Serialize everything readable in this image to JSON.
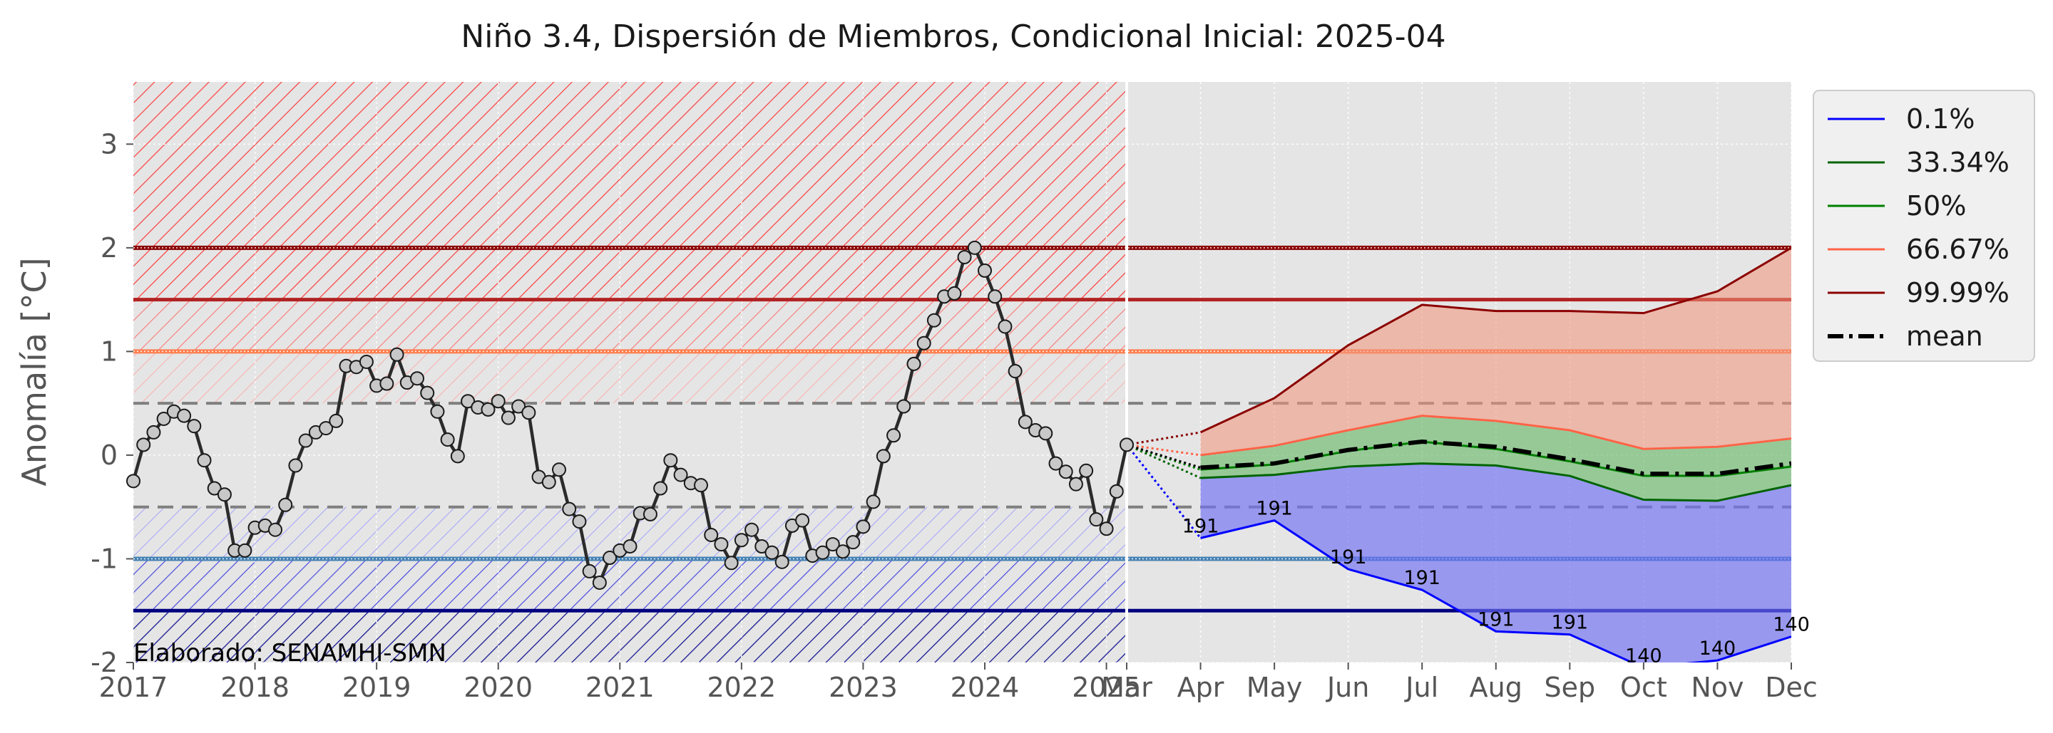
{
  "chart_data": {
    "type": "line",
    "title": "Niño 3.4, Dispersión de Miembros, Condicional Inicial: 2025-04",
    "ylabel": "Anomalía [°C]",
    "xlabel": "",
    "ylim": [
      -2,
      3.6
    ],
    "yticks": [
      -2,
      -1,
      0,
      1,
      2,
      3
    ],
    "grid": true,
    "legend_placement": "outside-right-top",
    "annotation": "Elaborado: SENAMHI-SMN",
    "observed": {
      "x_ticks": [
        "2017",
        "2018",
        "2019",
        "2020",
        "2021",
        "2022",
        "2023",
        "2024",
        "2025"
      ],
      "start": "2017-01",
      "end": "2025-03",
      "values": [
        -0.25,
        0.1,
        0.22,
        0.35,
        0.42,
        0.38,
        0.28,
        -0.05,
        -0.32,
        -0.38,
        -0.92,
        -0.92,
        -0.7,
        -0.68,
        -0.72,
        -0.48,
        -0.1,
        0.14,
        0.22,
        0.26,
        0.33,
        0.86,
        0.85,
        0.9,
        0.67,
        0.69,
        0.97,
        0.7,
        0.74,
        0.6,
        0.42,
        0.15,
        -0.01,
        0.52,
        0.46,
        0.44,
        0.52,
        0.36,
        0.47,
        0.41,
        -0.21,
        -0.26,
        -0.14,
        -0.52,
        -0.64,
        -1.12,
        -1.23,
        -0.99,
        -0.92,
        -0.88,
        -0.56,
        -0.57,
        -0.32,
        -0.05,
        -0.19,
        -0.27,
        -0.29,
        -0.77,
        -0.86,
        -1.04,
        -0.82,
        -0.72,
        -0.88,
        -0.94,
        -1.03,
        -0.68,
        -0.63,
        -0.97,
        -0.94,
        -0.86,
        -0.93,
        -0.84,
        -0.69,
        -0.45,
        -0.01,
        0.19,
        0.47,
        0.88,
        1.08,
        1.3,
        1.53,
        1.56,
        1.91,
        2.0,
        1.78,
        1.53,
        1.24,
        0.81,
        0.32,
        0.24,
        0.21,
        -0.08,
        -0.16,
        -0.28,
        -0.15,
        -0.62,
        -0.71,
        -0.35,
        0.1
      ]
    },
    "forecast": {
      "categories": [
        "Mar",
        "Apr",
        "May",
        "Jun",
        "Jul",
        "Aug",
        "Sep",
        "Oct",
        "Nov",
        "Dec"
      ],
      "series": [
        {
          "name": "0.1%",
          "color": "#0000ff",
          "values": [
            0.1,
            -0.8,
            -0.63,
            -1.1,
            -1.3,
            -1.7,
            -1.73,
            -2.05,
            -1.98,
            -1.75
          ]
        },
        {
          "name": "33.34%",
          "color": "#006400",
          "values": [
            0.1,
            -0.22,
            -0.19,
            -0.11,
            -0.08,
            -0.1,
            -0.2,
            -0.43,
            -0.44,
            -0.29
          ]
        },
        {
          "name": "50%",
          "color": "#008000",
          "values": [
            0.1,
            -0.14,
            -0.09,
            0.04,
            0.13,
            0.06,
            -0.06,
            -0.2,
            -0.2,
            -0.11
          ]
        },
        {
          "name": "66.67%",
          "color": "#ff6347",
          "values": [
            0.1,
            0.0,
            0.09,
            0.24,
            0.38,
            0.33,
            0.24,
            0.06,
            0.08,
            0.16
          ]
        },
        {
          "name": "99.99%",
          "color": "#8b0000",
          "values": [
            0.1,
            0.22,
            0.55,
            1.06,
            1.45,
            1.39,
            1.39,
            1.37,
            1.58,
            2.0
          ]
        },
        {
          "name": "mean",
          "color": "#000000",
          "style": "dashdot",
          "values": [
            0.1,
            -0.12,
            -0.08,
            0.05,
            0.13,
            0.08,
            -0.04,
            -0.18,
            -0.18,
            -0.08
          ]
        }
      ],
      "member_count_labels": [
        {
          "month": "Apr",
          "text": "191"
        },
        {
          "month": "May",
          "text": "191"
        },
        {
          "month": "Jun",
          "text": "191"
        },
        {
          "month": "Jul",
          "text": "191"
        },
        {
          "month": "Aug",
          "text": "191"
        },
        {
          "month": "Sep",
          "text": "191"
        },
        {
          "month": "Oct",
          "text": "140"
        },
        {
          "month": "Nov",
          "text": "140"
        },
        {
          "month": "Dec",
          "text": "140"
        }
      ]
    },
    "threshold_lines": [
      {
        "value": 2.0,
        "color": "#8b0000",
        "style": "double"
      },
      {
        "value": 1.5,
        "color": "#b22222",
        "style": "solid"
      },
      {
        "value": 1.0,
        "color": "#ff7f50",
        "style": "double"
      },
      {
        "value": 0.5,
        "color": "#808080",
        "style": "dashed"
      },
      {
        "value": -0.5,
        "color": "#808080",
        "style": "dashed"
      },
      {
        "value": -1.0,
        "color": "#4682b4",
        "style": "double"
      },
      {
        "value": -1.5,
        "color": "#000080",
        "style": "solid"
      }
    ],
    "hatch_bands": [
      {
        "from": 2.0,
        "to": 3.6,
        "color": "#ff0000"
      },
      {
        "from": 1.5,
        "to": 2.0,
        "color": "#ff0000"
      },
      {
        "from": 1.0,
        "to": 1.5,
        "color": "#ff5a5a"
      },
      {
        "from": 0.5,
        "to": 1.0,
        "color": "#ff9b9b"
      },
      {
        "from": -1.0,
        "to": -0.5,
        "color": "#9a9aff"
      },
      {
        "from": -1.5,
        "to": -1.0,
        "color": "#3c3cff"
      },
      {
        "from": -2.0,
        "to": -1.5,
        "color": "#000090"
      }
    ]
  }
}
